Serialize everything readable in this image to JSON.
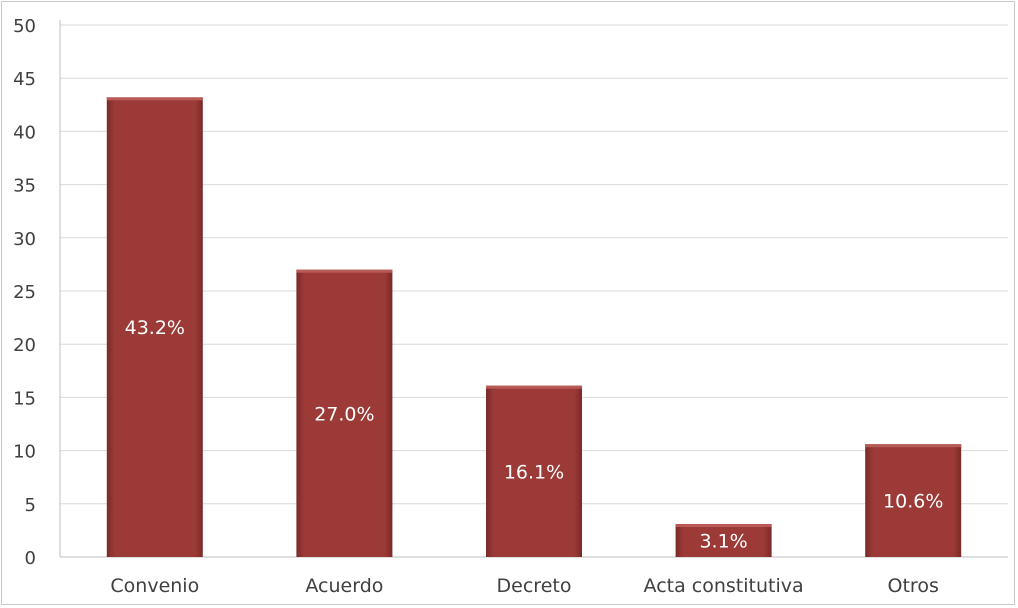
{
  "chart_data": {
    "type": "bar",
    "categories": [
      "Convenio",
      "Acuerdo",
      "Decreto",
      "Acta constitutiva",
      "Otros"
    ],
    "values": [
      43.2,
      27.0,
      16.1,
      3.1,
      10.6
    ],
    "data_labels": [
      "43.2%",
      "27.0%",
      "16.1%",
      "3.1%",
      "10.6%"
    ],
    "title": "",
    "xlabel": "",
    "ylabel": "",
    "ylim": [
      0,
      50
    ],
    "yticks": [
      "0",
      "5",
      "10",
      "15",
      "20",
      "25",
      "30",
      "35",
      "40",
      "45",
      "50"
    ],
    "grid": true,
    "legend": "none"
  },
  "colors": {
    "bar_fill": "#9b3a37",
    "bar_edge": "#7a2a28",
    "grid": "#d9d9d9",
    "axis": "#bfbfbf",
    "text": "#404040",
    "data_label": "#ffffff"
  }
}
